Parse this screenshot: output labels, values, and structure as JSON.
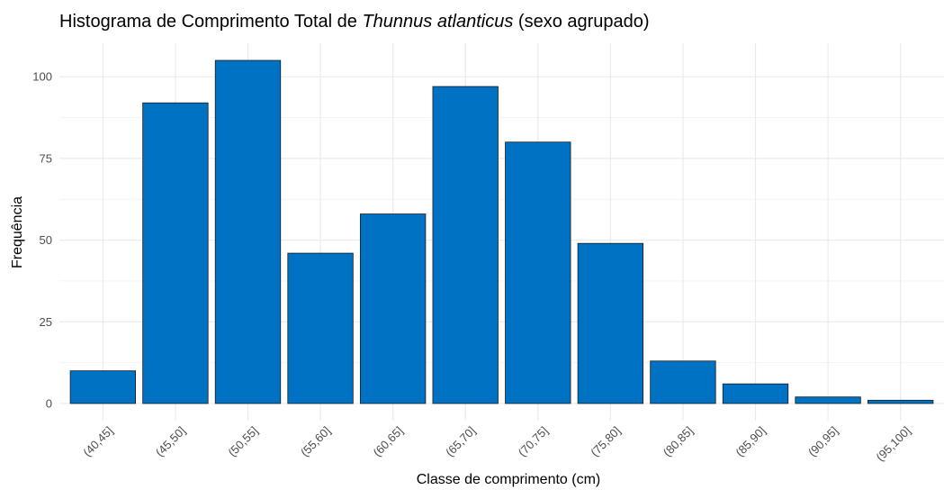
{
  "chart_data": {
    "type": "bar",
    "title": [
      "Histograma de Comprimento Total de",
      "Thunnus atlanticus",
      "(sexo agrupado)"
    ],
    "x_label": "Classe de comprimento (cm)",
    "y_label": "Frequência",
    "categories": [
      "(40,45]",
      "(45,50]",
      "(50,55]",
      "(55,60]",
      "(60,65]",
      "(65,70]",
      "(70,75]",
      "(75,80]",
      "(80,85]",
      "(85,90]",
      "(90,95]",
      "(95,100]"
    ],
    "values": [
      10,
      92,
      105,
      46,
      58,
      97,
      80,
      49,
      13,
      6,
      2,
      1
    ],
    "color": "#0072c3",
    "ylim": [
      -5.25,
      110.25
    ],
    "yticks": [
      0,
      25,
      50,
      75,
      100
    ],
    "grid": true
  }
}
